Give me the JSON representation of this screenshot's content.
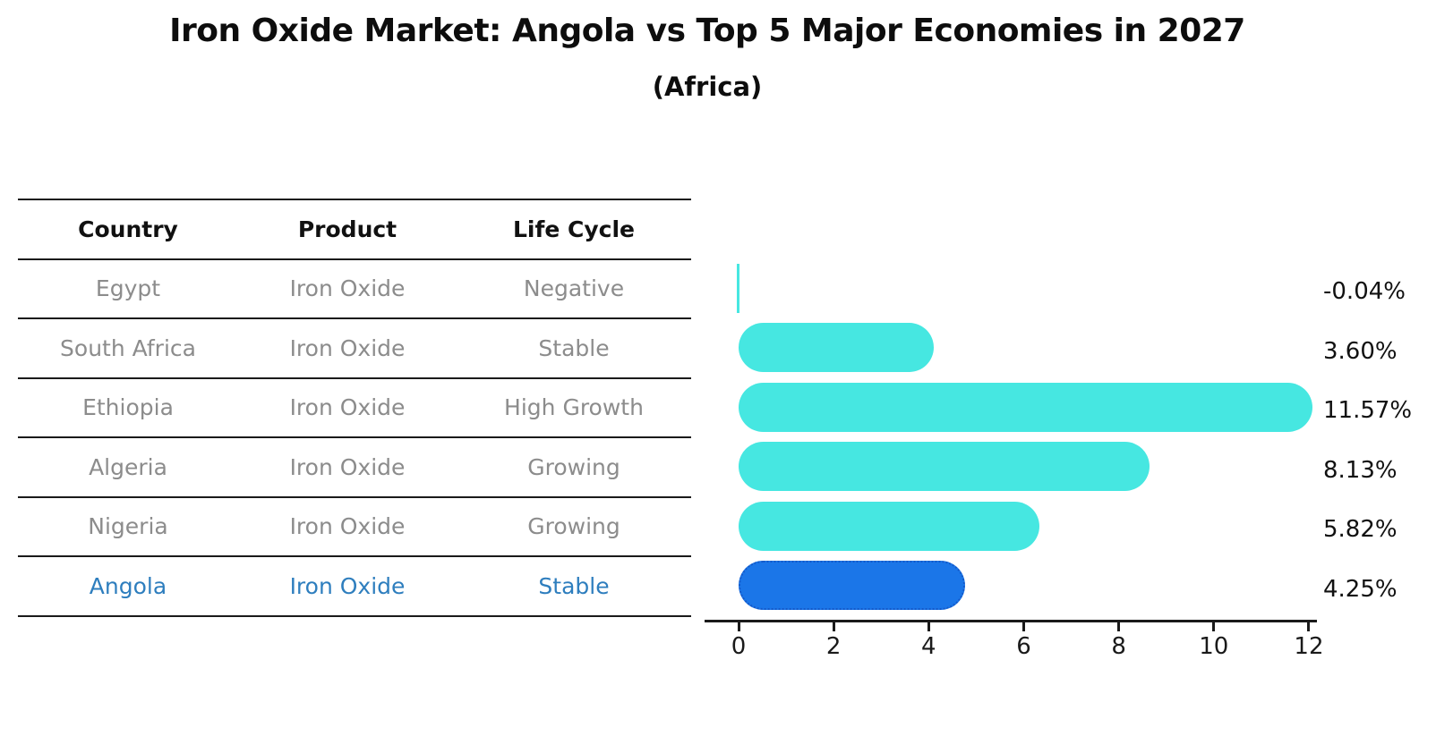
{
  "title": "Iron Oxide Market: Angola vs Top 5 Major Economies in 2027",
  "subtitle": "(Africa)",
  "table": {
    "headers": [
      "Country",
      "Product",
      "Life Cycle"
    ],
    "rows": [
      {
        "country": "Egypt",
        "product": "Iron Oxide",
        "life_cycle": "Negative",
        "highlight": false
      },
      {
        "country": "South Africa",
        "product": "Iron Oxide",
        "life_cycle": "Stable",
        "highlight": false
      },
      {
        "country": "Ethiopia",
        "product": "Iron Oxide",
        "life_cycle": "High Growth",
        "highlight": false
      },
      {
        "country": "Algeria",
        "product": "Iron Oxide",
        "life_cycle": "Growing",
        "highlight": false
      },
      {
        "country": "Nigeria",
        "product": "Iron Oxide",
        "life_cycle": "Growing",
        "highlight": false
      },
      {
        "country": "Angola",
        "product": "Iron Oxide",
        "life_cycle": "Stable",
        "highlight": true
      }
    ]
  },
  "chart_data": {
    "type": "bar",
    "orientation": "horizontal",
    "categories": [
      "Egypt",
      "South Africa",
      "Ethiopia",
      "Algeria",
      "Nigeria",
      "Angola"
    ],
    "values": [
      -0.04,
      3.6,
      11.57,
      8.13,
      5.82,
      4.25
    ],
    "value_labels": [
      "-0.04%",
      "3.60%",
      "11.57%",
      "8.13%",
      "5.82%",
      "4.25%"
    ],
    "title": "Iron Oxide Market: Angola vs Top 5 Major Economies in 2027 (Africa)",
    "xlabel": "",
    "ylabel": "",
    "xlim": [
      0,
      12
    ],
    "x_ticks": [
      "0",
      "2",
      "4",
      "6",
      "8",
      "10",
      "12"
    ],
    "grid": false,
    "legend": false,
    "highlight_category": "Angola"
  },
  "colors": {
    "bar_default": "#46e7e1",
    "bar_highlight": "#1b76e8",
    "bar_highlight_border": "#1459c9",
    "highlight_text": "#2e7ebe",
    "table_text": "#8c8c8c",
    "header_text": "#111111",
    "axis": "#1a1a1a"
  }
}
